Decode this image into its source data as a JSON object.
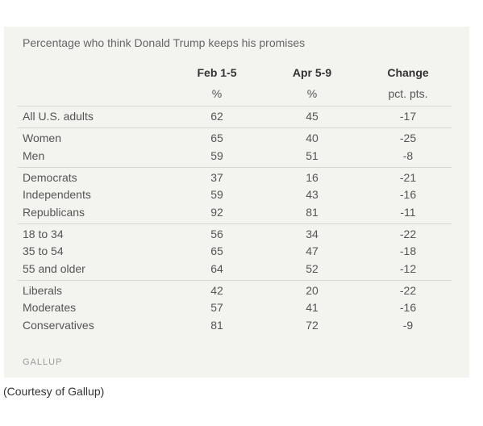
{
  "title": "Percentage who think Donald Trump keeps his promises",
  "table": {
    "columns": [
      "Feb 1-5",
      "Apr 5-9",
      "Change"
    ],
    "units": [
      "%",
      "%",
      "pct. pts."
    ],
    "groups": [
      [
        [
          "All U.S. adults",
          62,
          45,
          -17
        ]
      ],
      [
        [
          "Women",
          65,
          40,
          -25
        ],
        [
          "Men",
          59,
          51,
          -8
        ]
      ],
      [
        [
          "Democrats",
          37,
          16,
          -21
        ],
        [
          "Independents",
          59,
          43,
          -16
        ],
        [
          "Republicans",
          92,
          81,
          -11
        ]
      ],
      [
        [
          "18 to 34",
          56,
          34,
          -22
        ],
        [
          "35 to 54",
          65,
          47,
          -18
        ],
        [
          "55 and older",
          64,
          52,
          -12
        ]
      ],
      [
        [
          "Liberals",
          42,
          20,
          -22
        ],
        [
          "Moderates",
          57,
          41,
          -16
        ],
        [
          "Conservatives",
          81,
          72,
          -9
        ]
      ]
    ]
  },
  "source": "GALLUP",
  "caption": "(Courtesy of Gallup)"
}
